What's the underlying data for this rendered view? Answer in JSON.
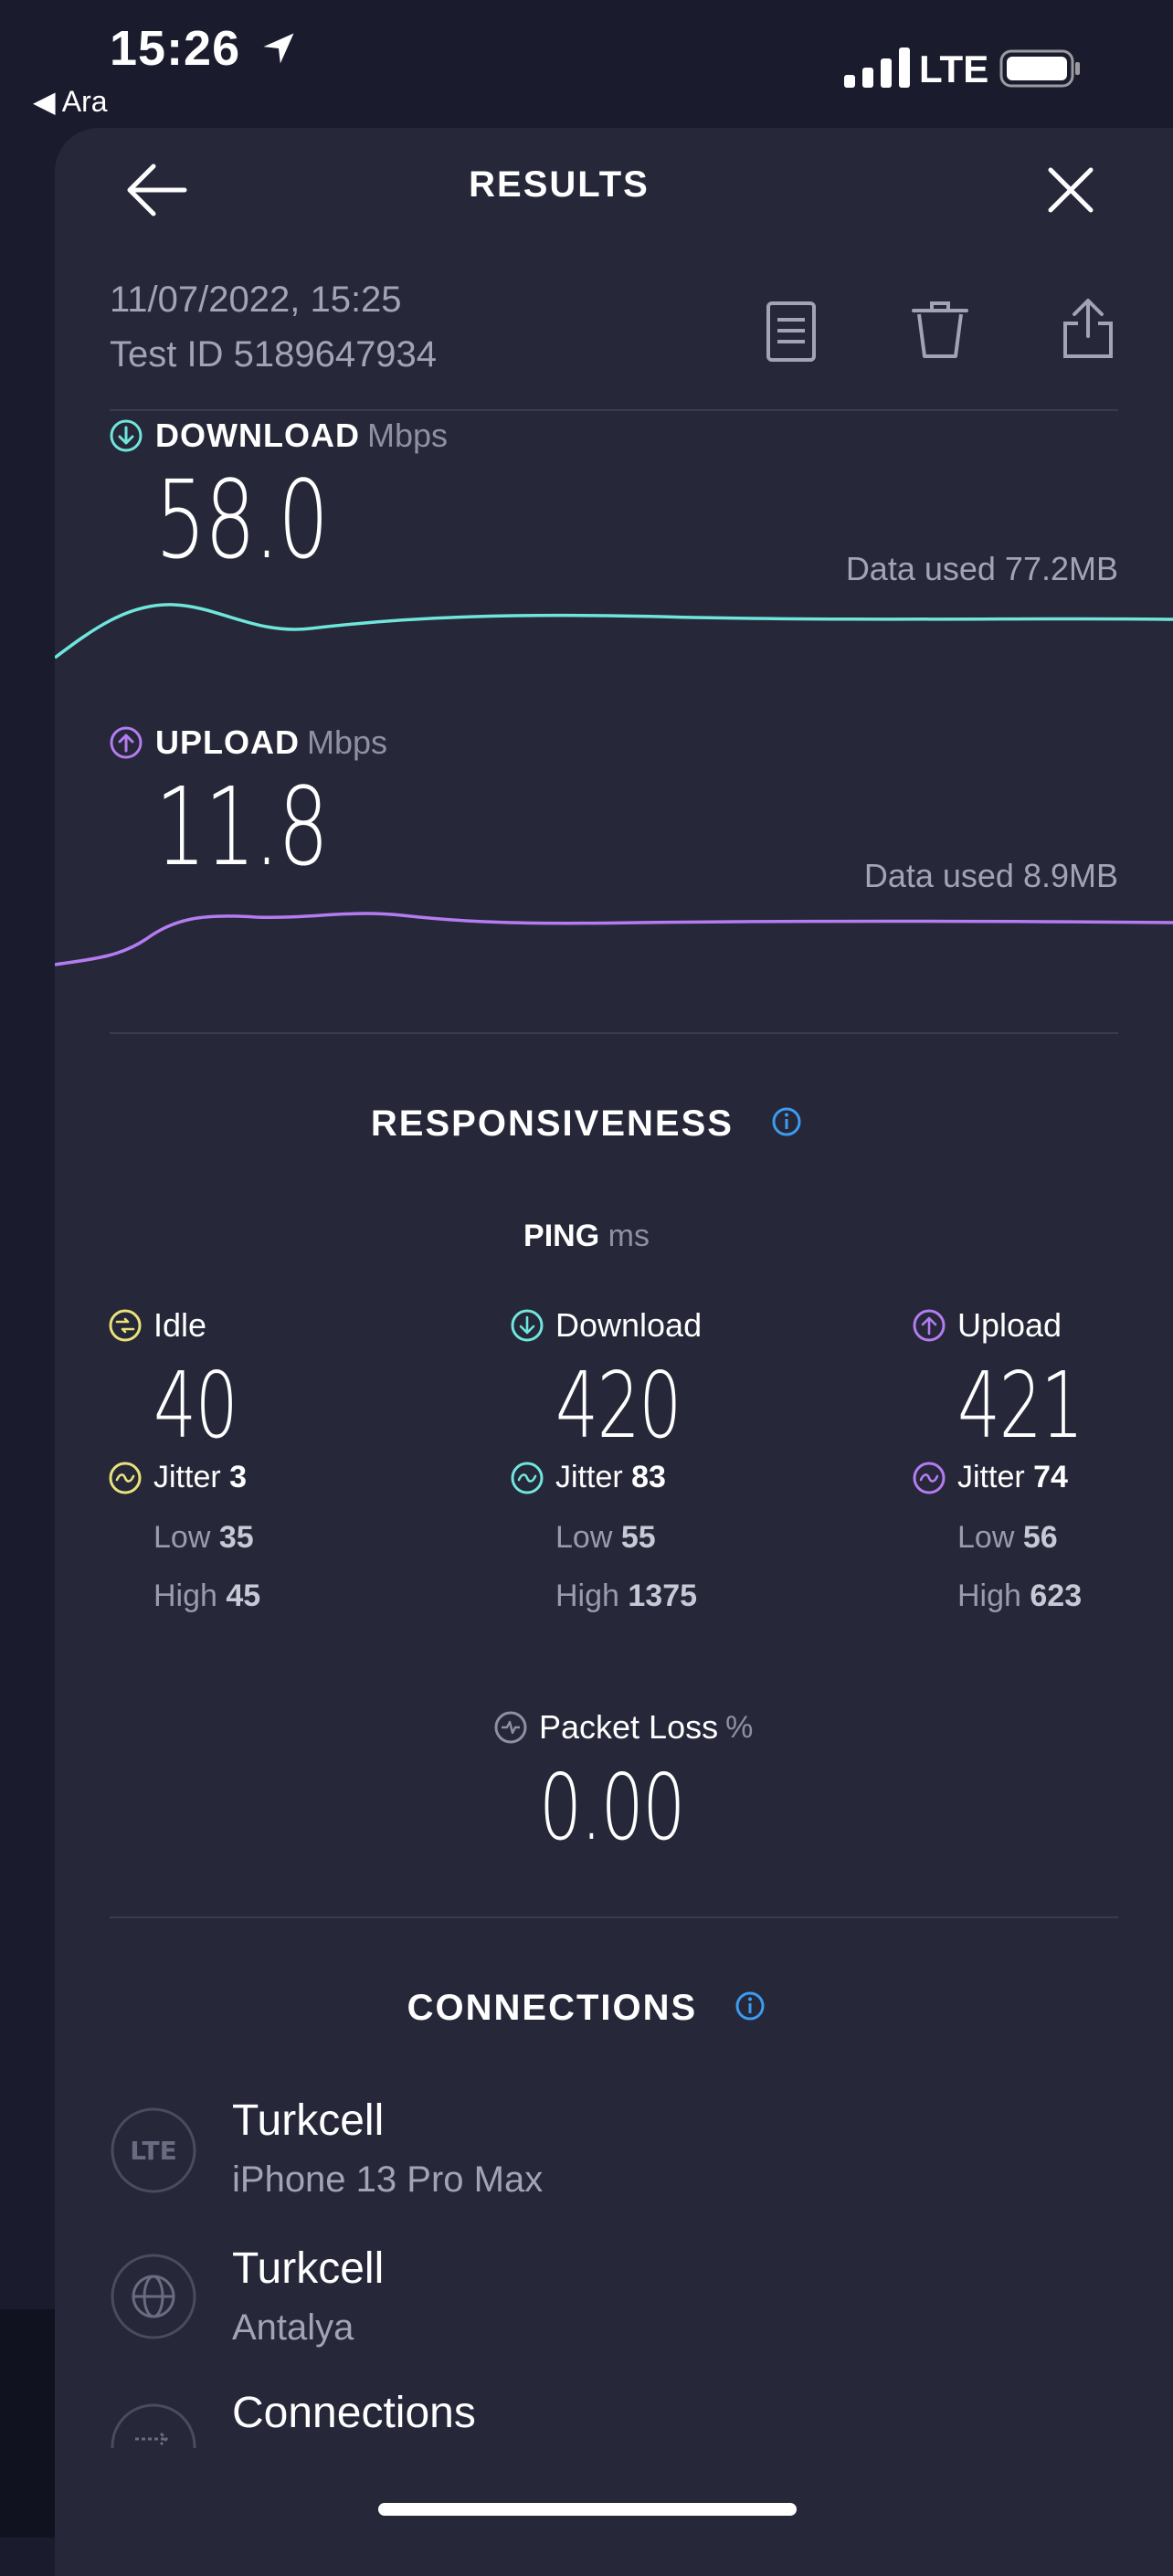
{
  "status_bar": {
    "time": "15:26",
    "back_app": "◀ Ara",
    "network": "LTE"
  },
  "header": {
    "title": "RESULTS"
  },
  "test": {
    "datetime": "11/07/2022, 15:25",
    "test_id": "Test ID 5189647934"
  },
  "download": {
    "label": "DOWNLOAD",
    "unit": "Mbps",
    "value": "58.0",
    "data_used": "Data used 77.2MB"
  },
  "upload": {
    "label": "UPLOAD",
    "unit": "Mbps",
    "value": "11.8",
    "data_used": "Data used 8.9MB"
  },
  "responsiveness": {
    "title": "RESPONSIVENESS",
    "ping_label": "PING",
    "ping_unit": "ms",
    "columns": [
      {
        "label": "Idle",
        "value": "40",
        "jitter_label": "Jitter",
        "jitter": "3",
        "low_label": "Low",
        "low": "35",
        "high_label": "High",
        "high": "45"
      },
      {
        "label": "Download",
        "value": "420",
        "jitter_label": "Jitter",
        "jitter": "83",
        "low_label": "Low",
        "low": "55",
        "high_label": "High",
        "high": "1375"
      },
      {
        "label": "Upload",
        "value": "421",
        "jitter_label": "Jitter",
        "jitter": "74",
        "low_label": "Low",
        "low": "56",
        "high_label": "High",
        "high": "623"
      }
    ],
    "packet_loss_label": "Packet Loss",
    "packet_loss_unit": "%",
    "packet_loss": "0.00"
  },
  "connections": {
    "title": "CONNECTIONS",
    "items": [
      {
        "name": "Turkcell",
        "sub": "iPhone 13 Pro Max",
        "icon": "lte-icon",
        "icon_text": "LTE"
      },
      {
        "name": "Turkcell",
        "sub": "Antalya",
        "icon": "globe-icon"
      },
      {
        "name": "Connections",
        "sub": "",
        "icon": "connections-icon"
      }
    ]
  },
  "colors": {
    "background": "#1a1b2d",
    "sheet": "#262739",
    "download": "#6fe6dc",
    "upload": "#b47cf0",
    "idle": "#e9e27a",
    "info": "#3d9bf0"
  }
}
